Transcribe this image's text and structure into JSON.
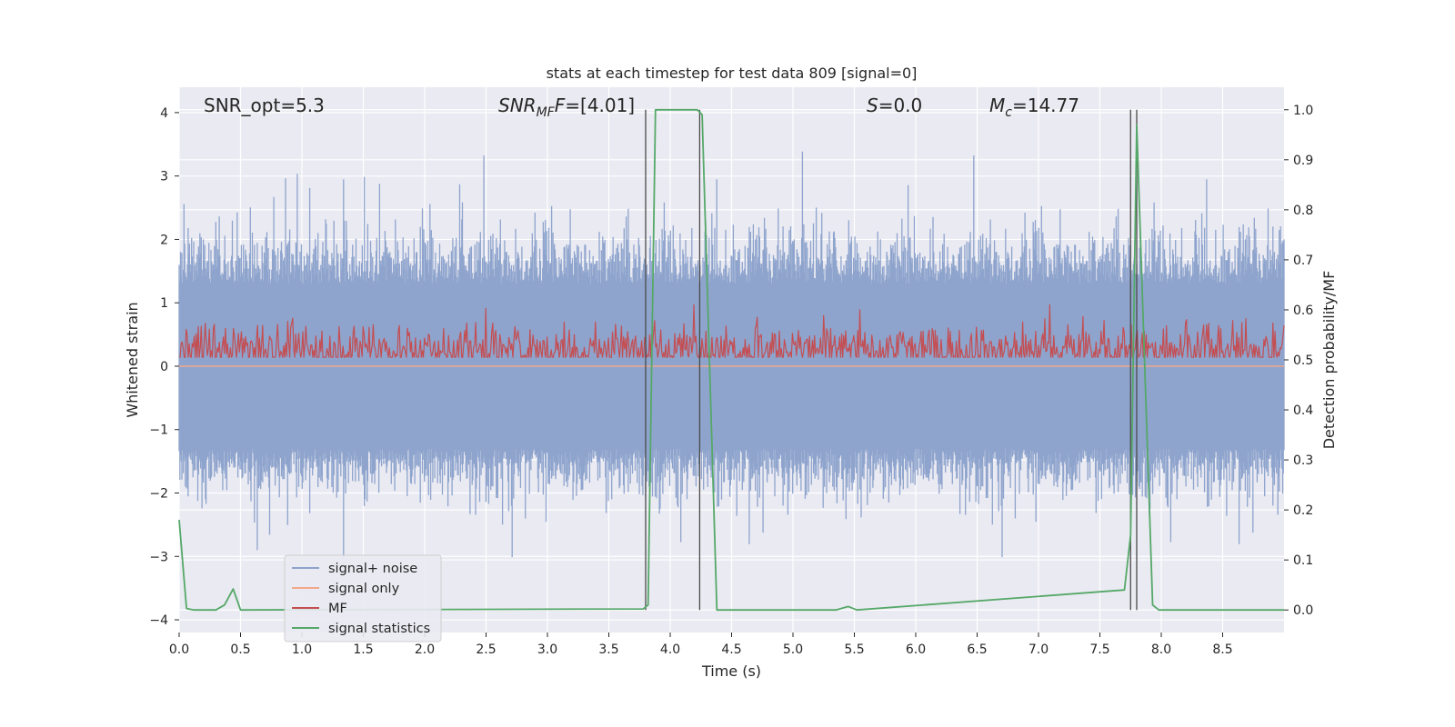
{
  "chart_data": {
    "type": "line",
    "title": "stats at each timestep for test data 809 [signal=0]",
    "xlabel": "Time (s)",
    "ylabel": "Whitened strain",
    "y2label": "Detection probability/MF",
    "xlim": [
      0.0,
      9.0
    ],
    "ylim": [
      -4.2,
      4.4
    ],
    "y2lim": [
      -0.045,
      1.045
    ],
    "x_ticks": [
      "0.0",
      "0.5",
      "1.0",
      "1.5",
      "2.0",
      "2.5",
      "3.0",
      "3.5",
      "4.0",
      "4.5",
      "5.0",
      "5.5",
      "6.0",
      "6.5",
      "7.0",
      "7.5",
      "8.0",
      "8.5"
    ],
    "y_ticks": [
      "−4",
      "−3",
      "−2",
      "−1",
      "0",
      "1",
      "2",
      "3",
      "4"
    ],
    "y2_ticks": [
      "0.0",
      "0.1",
      "0.2",
      "0.3",
      "0.4",
      "0.5",
      "0.6",
      "0.7",
      "0.8",
      "0.9",
      "1.0"
    ],
    "grid": true,
    "legend_position": "lower-left",
    "annotations": [
      {
        "text": "SNR_opt=5.3",
        "x": 0.2,
        "y": 4.1
      },
      {
        "text": "SNR",
        "sub": "MF",
        "rest": "F=[4.01]",
        "italic": true,
        "x": 2.6,
        "y": 4.1
      },
      {
        "text": "S",
        "rest": "=0.0",
        "italic": true,
        "x": 5.6,
        "y": 4.1
      },
      {
        "text": "M",
        "sub": "c",
        "rest": "=14.77",
        "italic": true,
        "x": 6.6,
        "y": 4.1
      }
    ],
    "series": [
      {
        "name": "signal+ noise",
        "color": "#8ea4cd",
        "kind": "noise",
        "axis": "left",
        "band_low": -1.3,
        "band_high": 1.3,
        "peak_max": 4.0,
        "peak_min": -3.7
      },
      {
        "name": "signal only",
        "color": "#f2a88a",
        "axis": "left",
        "x": [
          0.0,
          9.0
        ],
        "y": [
          0.0,
          0.0
        ]
      },
      {
        "name": "MF",
        "color": "#c44e52",
        "kind": "mf",
        "axis": "right",
        "base": 0.52,
        "amp_max": 0.61
      },
      {
        "name": "signal statistics",
        "color": "#55a868",
        "axis": "right",
        "x": [
          0.0,
          0.06,
          0.12,
          0.3,
          0.37,
          0.44,
          0.5,
          3.78,
          3.82,
          3.88,
          4.22,
          4.26,
          4.38,
          5.35,
          5.45,
          5.52,
          7.7,
          7.75,
          7.8,
          7.93,
          7.98,
          9.0
        ],
        "y": [
          0.18,
          0.003,
          0.0,
          0.0,
          0.01,
          0.042,
          0.0,
          0.002,
          0.01,
          1.0,
          1.0,
          0.99,
          0.0,
          0.0,
          0.007,
          0.0,
          0.04,
          0.15,
          0.97,
          0.01,
          0.0,
          0.0
        ]
      }
    ],
    "vlines": [
      3.8,
      4.24,
      7.75,
      7.8
    ]
  }
}
